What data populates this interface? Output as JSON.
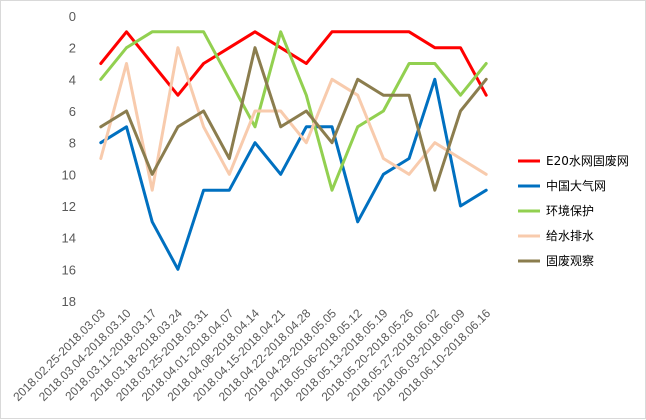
{
  "chart_data": {
    "type": "line",
    "title": "",
    "xlabel": "",
    "ylabel": "",
    "y_reversed": true,
    "ylim": [
      0,
      18
    ],
    "yticks": [
      0,
      2,
      4,
      6,
      8,
      10,
      12,
      14,
      16,
      18
    ],
    "grid": false,
    "legend_position": "right",
    "categories": [
      "2018.02.25-2018.03.03",
      "2018.03.04-2018.03.10",
      "2018.03.11-2018.03.17",
      "2018.03.18-2018.03.24",
      "2018.03.25-2018.03.31",
      "2018.04.01-2018.04.07",
      "2018.04.08-2018.04.14",
      "2018.04.15-2018.04.21",
      "2018.04.22-2018.04.28",
      "2018.04.29-2018.05.05",
      "2018.05.06-2018.05.12",
      "2018.05.13-2018.05.19",
      "2018.05.20-2018.05.26",
      "2018.05.27-2018.06.02",
      "2018.06.03-2018.06.09",
      "2018.06.10-2018.06.16"
    ],
    "series": [
      {
        "name": "E20水网固废网",
        "color": "#ff0000",
        "values": [
          3,
          1,
          3,
          5,
          3,
          2,
          1,
          2,
          3,
          1,
          1,
          1,
          1,
          2,
          2,
          5
        ]
      },
      {
        "name": "中国大气网",
        "color": "#0070c0",
        "values": [
          8,
          7,
          13,
          16,
          11,
          11,
          8,
          10,
          7,
          7,
          13,
          10,
          9,
          4,
          12,
          11
        ]
      },
      {
        "name": "环境保护",
        "color": "#92d050",
        "values": [
          4,
          2,
          1,
          1,
          1,
          4,
          7,
          1,
          5,
          11,
          7,
          6,
          3,
          3,
          5,
          3
        ]
      },
      {
        "name": "给水排水",
        "color": "#f8cbad",
        "values": [
          9,
          3,
          11,
          2,
          7,
          10,
          6,
          6,
          8,
          4,
          5,
          9,
          10,
          8,
          9,
          10
        ]
      },
      {
        "name": "固废观察",
        "color": "#8b7d4e",
        "values": [
          7,
          6,
          10,
          7,
          6,
          9,
          2,
          7,
          6,
          8,
          4,
          5,
          5,
          11,
          6,
          4
        ]
      }
    ]
  }
}
